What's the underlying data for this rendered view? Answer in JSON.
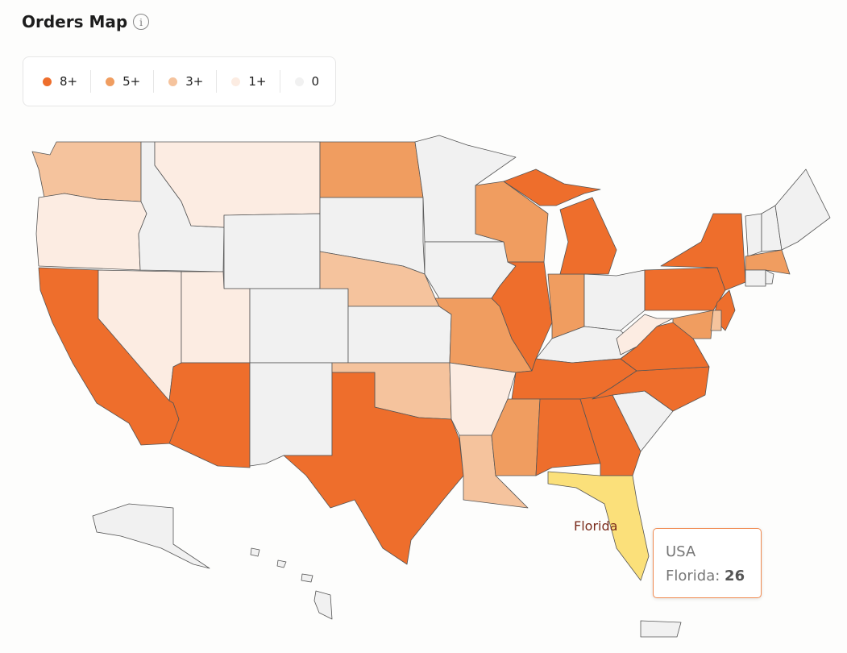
{
  "title": "Orders Map",
  "legend": [
    {
      "label": "8+",
      "color": "#ee6e2c"
    },
    {
      "label": "5+",
      "color": "#f09d60"
    },
    {
      "label": "3+",
      "color": "#f5c39d"
    },
    {
      "label": "1+",
      "color": "#fcece2"
    },
    {
      "label": "0",
      "color": "#f1f1f1"
    }
  ],
  "map": {
    "highlight_color": "#fbe07a",
    "hover_label": "Florida"
  },
  "tooltip": {
    "region": "USA",
    "name": "Florida",
    "separator": ":",
    "value": 26
  }
}
